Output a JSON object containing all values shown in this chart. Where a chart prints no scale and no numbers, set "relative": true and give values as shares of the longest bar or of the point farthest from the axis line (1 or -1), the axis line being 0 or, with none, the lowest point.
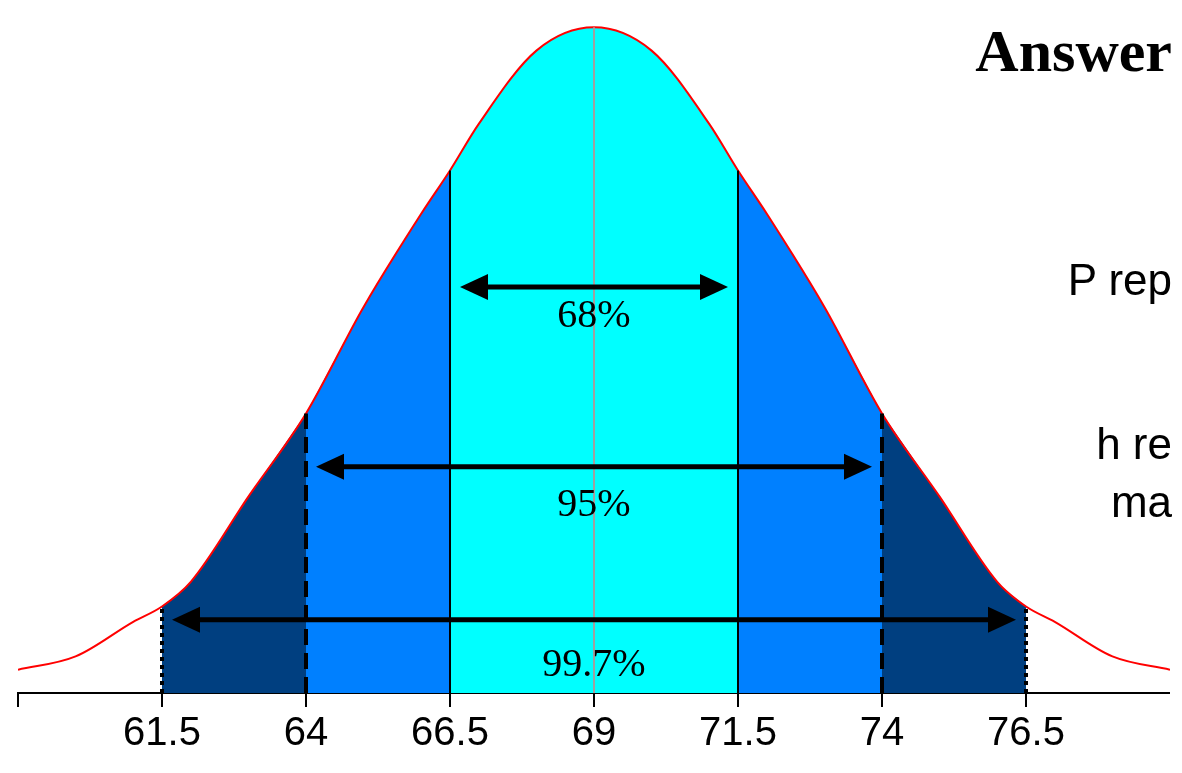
{
  "chart_data": {
    "type": "line",
    "relative": true,
    "x": [
      59,
      60,
      61,
      61.5,
      62,
      63,
      64,
      65,
      66,
      66.5,
      67,
      68,
      69,
      70,
      71,
      71.5,
      72,
      73,
      74,
      75,
      76,
      76.5,
      77,
      78,
      79
    ],
    "series": [
      {
        "type": "area",
        "color": "#003f80",
        "x": [
          61.5,
          62,
          63,
          64,
          69,
          74,
          75,
          76,
          76.5
        ],
        "values": [
          0.13,
          0.167,
          0.295,
          0.42,
          null,
          0.42,
          0.295,
          0.167,
          0.13
        ]
      },
      {
        "type": "area",
        "name": "95%",
        "color": "#0080ff",
        "x": [
          64,
          65,
          66,
          66.5,
          69,
          71.5,
          72,
          73,
          74
        ],
        "values": [
          0.42,
          0.58,
          0.72,
          0.785,
          null,
          0.785,
          0.72,
          0.58,
          0.42
        ]
      },
      {
        "type": "area",
        "name": "68%",
        "color": "#00ffff",
        "x": [
          66.5,
          67,
          68,
          69,
          70,
          71,
          71.5
        ],
        "values": [
          0.785,
          0.855,
          0.965,
          1,
          0.965,
          0.855,
          0.785
        ]
      },
      {
        "color": "#ff0000",
        "values": [
          0.035,
          0.055,
          0.107,
          0.13,
          0.167,
          0.295,
          0.42,
          0.58,
          0.72,
          0.785,
          0.855,
          0.965,
          1,
          0.965,
          0.855,
          0.785,
          0.72,
          0.58,
          0.42,
          0.295,
          0.167,
          0.13,
          0.107,
          0.055,
          0.035
        ]
      }
    ],
    "xlim": [
      59,
      79
    ],
    "xticks": [
      {
        "value": 59,
        "label": null
      },
      61.5,
      64,
      66.5,
      69,
      71.5,
      74,
      76.5
    ],
    "ref_lines": [
      {
        "axis": "x",
        "value": 61.5,
        "line_style": "dotted",
        "color": "#000000"
      },
      {
        "axis": "x",
        "value": 64,
        "line_style": "dashed",
        "color": "#000000"
      },
      {
        "axis": "x",
        "value": 66.5,
        "line_style": "solid",
        "color": "#000000"
      },
      {
        "axis": "x",
        "value": 69,
        "line_style": "solid",
        "color": "#a0a0a0"
      },
      {
        "axis": "x",
        "value": 71.5,
        "line_style": "solid",
        "color": "#000000"
      },
      {
        "axis": "x",
        "value": 74,
        "line_style": "dashed",
        "color": "#000000"
      },
      {
        "axis": "x",
        "value": 76.5,
        "line_style": "dotted",
        "color": "#000000"
      }
    ],
    "annotations": [
      "Answer",
      "P rep",
      "h re",
      "ma",
      "99.7%"
    ],
    "grid": false,
    "legend": false,
    "marker": "none",
    "line_style": "solid"
  }
}
